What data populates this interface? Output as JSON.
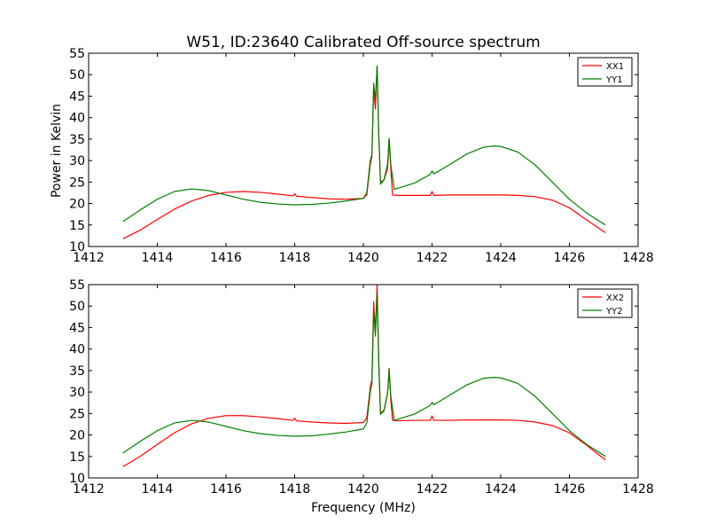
{
  "colors": {
    "background": "#ffffff",
    "axes_frame": "#000000"
  },
  "chart_data": [
    {
      "type": "line",
      "title": "W51, ID:23640 Calibrated Off-source spectrum",
      "xlabel": "",
      "ylabel": "Power in Kelvin",
      "xlim": [
        1412,
        1428
      ],
      "ylim": [
        10,
        55
      ],
      "xticks": [
        1412,
        1414,
        1416,
        1418,
        1420,
        1422,
        1424,
        1426,
        1428
      ],
      "yticks": [
        10,
        15,
        20,
        25,
        30,
        35,
        40,
        45,
        50,
        55
      ],
      "grid": false,
      "legend": "top-right",
      "series": [
        {
          "name": "XX1",
          "color": "#ff0000",
          "points": [
            [
              1413.0,
              11.8
            ],
            [
              1413.5,
              13.8
            ],
            [
              1414.0,
              16.3
            ],
            [
              1414.5,
              18.7
            ],
            [
              1415.0,
              20.6
            ],
            [
              1415.5,
              21.9
            ],
            [
              1416.0,
              22.6
            ],
            [
              1416.5,
              22.8
            ],
            [
              1417.0,
              22.6
            ],
            [
              1417.5,
              22.2
            ],
            [
              1417.95,
              21.8
            ],
            [
              1418.0,
              22.3
            ],
            [
              1418.05,
              21.7
            ],
            [
              1418.5,
              21.4
            ],
            [
              1419.0,
              21.1
            ],
            [
              1419.5,
              21.0
            ],
            [
              1420.0,
              21.2
            ],
            [
              1420.1,
              22.0
            ],
            [
              1420.2,
              29.0
            ],
            [
              1420.25,
              31.0
            ],
            [
              1420.3,
              47.0
            ],
            [
              1420.35,
              42.0
            ],
            [
              1420.4,
              52.0
            ],
            [
              1420.45,
              35.0
            ],
            [
              1420.5,
              25.0
            ],
            [
              1420.6,
              25.5
            ],
            [
              1420.7,
              28.0
            ],
            [
              1420.72,
              30.0
            ],
            [
              1420.75,
              35.0
            ],
            [
              1420.8,
              28.0
            ],
            [
              1420.85,
              22.0
            ],
            [
              1421.0,
              21.9
            ],
            [
              1421.5,
              21.9
            ],
            [
              1421.95,
              21.9
            ],
            [
              1422.0,
              22.8
            ],
            [
              1422.05,
              21.9
            ],
            [
              1422.5,
              22.0
            ],
            [
              1423.0,
              22.0
            ],
            [
              1423.5,
              22.0
            ],
            [
              1424.0,
              22.0
            ],
            [
              1424.5,
              21.9
            ],
            [
              1425.0,
              21.6
            ],
            [
              1425.5,
              20.8
            ],
            [
              1426.0,
              19.0
            ],
            [
              1426.5,
              16.2
            ],
            [
              1427.05,
              13.2
            ]
          ]
        },
        {
          "name": "YY1",
          "color": "#008000",
          "points": [
            [
              1413.0,
              15.8
            ],
            [
              1413.5,
              18.5
            ],
            [
              1414.0,
              21.0
            ],
            [
              1414.5,
              22.8
            ],
            [
              1415.0,
              23.4
            ],
            [
              1415.5,
              23.0
            ],
            [
              1416.0,
              22.0
            ],
            [
              1416.5,
              21.0
            ],
            [
              1417.0,
              20.3
            ],
            [
              1417.5,
              19.9
            ],
            [
              1418.0,
              19.7
            ],
            [
              1418.5,
              19.8
            ],
            [
              1419.0,
              20.1
            ],
            [
              1419.5,
              20.6
            ],
            [
              1420.0,
              21.2
            ],
            [
              1420.1,
              22.5
            ],
            [
              1420.2,
              30.0
            ],
            [
              1420.25,
              31.5
            ],
            [
              1420.3,
              48.0
            ],
            [
              1420.35,
              44.0
            ],
            [
              1420.4,
              52.0
            ],
            [
              1420.45,
              36.0
            ],
            [
              1420.5,
              24.5
            ],
            [
              1420.6,
              25.5
            ],
            [
              1420.7,
              29.0
            ],
            [
              1420.72,
              31.0
            ],
            [
              1420.75,
              35.2
            ],
            [
              1420.8,
              29.0
            ],
            [
              1420.9,
              23.3
            ],
            [
              1421.5,
              24.8
            ],
            [
              1421.95,
              26.8
            ],
            [
              1422.0,
              27.6
            ],
            [
              1422.05,
              26.9
            ],
            [
              1422.5,
              29.0
            ],
            [
              1423.0,
              31.5
            ],
            [
              1423.5,
              33.1
            ],
            [
              1423.8,
              33.4
            ],
            [
              1424.0,
              33.3
            ],
            [
              1424.5,
              32.0
            ],
            [
              1425.0,
              29.0
            ],
            [
              1425.5,
              25.0
            ],
            [
              1426.0,
              21.0
            ],
            [
              1426.5,
              17.8
            ],
            [
              1427.05,
              15.0
            ]
          ]
        }
      ]
    },
    {
      "type": "line",
      "title": "",
      "xlabel": "Frequency (MHz)",
      "ylabel": "",
      "xlim": [
        1412,
        1428
      ],
      "ylim": [
        10,
        55
      ],
      "xticks": [
        1412,
        1414,
        1416,
        1418,
        1420,
        1422,
        1424,
        1426,
        1428
      ],
      "yticks": [
        10,
        15,
        20,
        25,
        30,
        35,
        40,
        45,
        50,
        55
      ],
      "grid": false,
      "legend": "top-right",
      "series": [
        {
          "name": "XX2",
          "color": "#ff0000",
          "points": [
            [
              1413.0,
              12.6
            ],
            [
              1413.5,
              15.0
            ],
            [
              1414.0,
              17.8
            ],
            [
              1414.5,
              20.5
            ],
            [
              1415.0,
              22.6
            ],
            [
              1415.5,
              23.9
            ],
            [
              1416.0,
              24.5
            ],
            [
              1416.5,
              24.5
            ],
            [
              1417.0,
              24.2
            ],
            [
              1417.5,
              23.8
            ],
            [
              1417.95,
              23.4
            ],
            [
              1418.0,
              23.9
            ],
            [
              1418.05,
              23.3
            ],
            [
              1418.5,
              23.0
            ],
            [
              1419.0,
              22.8
            ],
            [
              1419.5,
              22.7
            ],
            [
              1420.0,
              22.9
            ],
            [
              1420.1,
              24.0
            ],
            [
              1420.2,
              31.0
            ],
            [
              1420.25,
              33.0
            ],
            [
              1420.3,
              51.0
            ],
            [
              1420.35,
              44.0
            ],
            [
              1420.4,
              55.0
            ],
            [
              1420.45,
              37.0
            ],
            [
              1420.5,
              25.0
            ],
            [
              1420.6,
              25.8
            ],
            [
              1420.7,
              29.5
            ],
            [
              1420.72,
              31.0
            ],
            [
              1420.75,
              35.5
            ],
            [
              1420.8,
              28.0
            ],
            [
              1420.85,
              23.4
            ],
            [
              1421.0,
              23.3
            ],
            [
              1421.5,
              23.4
            ],
            [
              1421.95,
              23.4
            ],
            [
              1422.0,
              24.4
            ],
            [
              1422.05,
              23.4
            ],
            [
              1422.5,
              23.4
            ],
            [
              1423.0,
              23.5
            ],
            [
              1423.5,
              23.5
            ],
            [
              1424.0,
              23.5
            ],
            [
              1424.5,
              23.4
            ],
            [
              1425.0,
              23.0
            ],
            [
              1425.5,
              22.2
            ],
            [
              1426.0,
              20.5
            ],
            [
              1426.5,
              17.6
            ],
            [
              1427.05,
              14.2
            ]
          ]
        },
        {
          "name": "YY2",
          "color": "#008000",
          "points": [
            [
              1413.0,
              15.8
            ],
            [
              1413.5,
              18.5
            ],
            [
              1414.0,
              21.0
            ],
            [
              1414.5,
              22.8
            ],
            [
              1415.0,
              23.4
            ],
            [
              1415.5,
              23.0
            ],
            [
              1416.0,
              22.0
            ],
            [
              1416.5,
              21.0
            ],
            [
              1417.0,
              20.3
            ],
            [
              1417.5,
              19.9
            ],
            [
              1418.0,
              19.7
            ],
            [
              1418.5,
              19.8
            ],
            [
              1419.0,
              20.2
            ],
            [
              1419.5,
              20.7
            ],
            [
              1420.0,
              21.4
            ],
            [
              1420.1,
              22.8
            ],
            [
              1420.2,
              30.0
            ],
            [
              1420.25,
              32.0
            ],
            [
              1420.3,
              49.0
            ],
            [
              1420.35,
              43.0
            ],
            [
              1420.4,
              53.0
            ],
            [
              1420.45,
              36.0
            ],
            [
              1420.5,
              24.8
            ],
            [
              1420.6,
              25.6
            ],
            [
              1420.7,
              29.5
            ],
            [
              1420.72,
              31.5
            ],
            [
              1420.75,
              35.3
            ],
            [
              1420.8,
              29.0
            ],
            [
              1420.9,
              23.4
            ],
            [
              1421.5,
              24.9
            ],
            [
              1421.95,
              26.9
            ],
            [
              1422.0,
              27.6
            ],
            [
              1422.05,
              27.0
            ],
            [
              1422.5,
              29.2
            ],
            [
              1423.0,
              31.6
            ],
            [
              1423.5,
              33.2
            ],
            [
              1423.8,
              33.4
            ],
            [
              1424.0,
              33.3
            ],
            [
              1424.5,
              32.0
            ],
            [
              1425.0,
              29.0
            ],
            [
              1425.5,
              25.0
            ],
            [
              1426.0,
              21.0
            ],
            [
              1426.5,
              17.8
            ],
            [
              1427.05,
              15.0
            ]
          ]
        }
      ]
    }
  ]
}
